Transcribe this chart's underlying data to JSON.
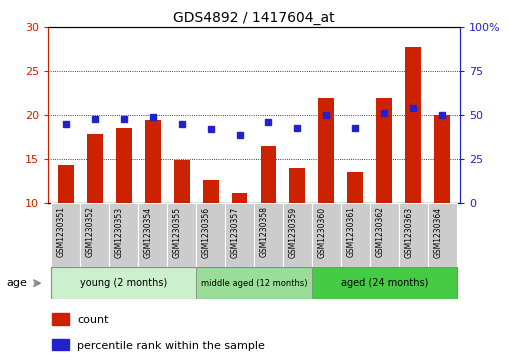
{
  "title": "GDS4892 / 1417604_at",
  "samples": [
    "GSM1230351",
    "GSM1230352",
    "GSM1230353",
    "GSM1230354",
    "GSM1230355",
    "GSM1230356",
    "GSM1230357",
    "GSM1230358",
    "GSM1230359",
    "GSM1230360",
    "GSM1230361",
    "GSM1230362",
    "GSM1230363",
    "GSM1230364"
  ],
  "counts": [
    14.4,
    17.9,
    18.5,
    19.5,
    14.9,
    12.7,
    11.2,
    16.5,
    14.0,
    22.0,
    13.6,
    22.0,
    27.7,
    20.0
  ],
  "percentiles": [
    45,
    48,
    48,
    49,
    45,
    42,
    39,
    46,
    43,
    50,
    43,
    51,
    54,
    50
  ],
  "bar_color": "#cc2200",
  "dot_color": "#2222cc",
  "ylim_left": [
    10,
    30
  ],
  "ylim_right": [
    0,
    100
  ],
  "yticks_left": [
    10,
    15,
    20,
    25,
    30
  ],
  "yticks_right": [
    0,
    25,
    50,
    75,
    100
  ],
  "ytick_labels_right": [
    "0",
    "25",
    "50",
    "75",
    "100%"
  ],
  "groups": [
    {
      "label": "young (2 months)",
      "start": 0,
      "end": 5,
      "color": "#ccf0cc"
    },
    {
      "label": "middle aged (12 months)",
      "start": 5,
      "end": 9,
      "color": "#99dd99"
    },
    {
      "label": "aged (24 months)",
      "start": 9,
      "end": 14,
      "color": "#44cc44"
    }
  ],
  "age_label": "age",
  "legend_count_label": "count",
  "legend_pct_label": "percentile rank within the sample",
  "grid_color": "#000000",
  "background_color": "#ffffff",
  "tick_label_color_left": "#cc2200",
  "tick_label_color_right": "#2222cc",
  "sample_box_color": "#cccccc",
  "bar_width": 0.55
}
